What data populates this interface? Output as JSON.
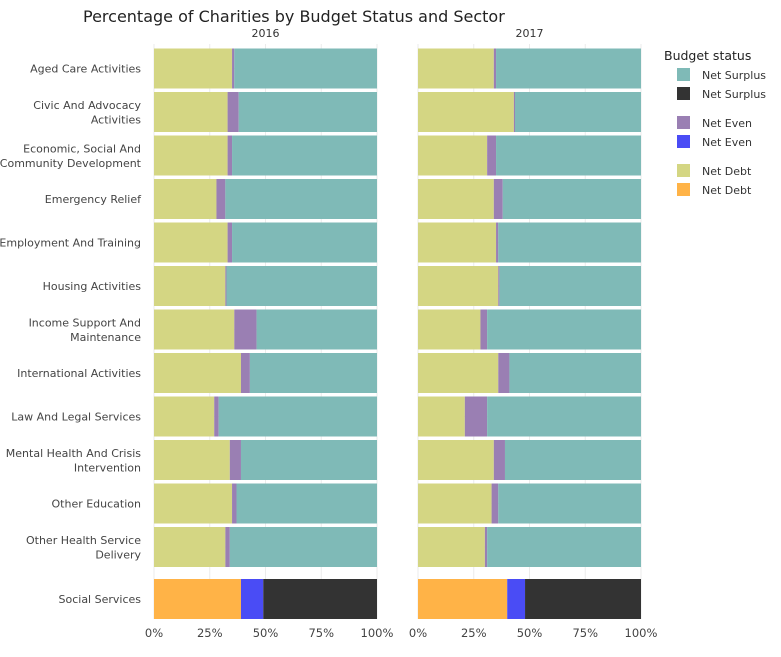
{
  "chart_data": {
    "type": "bar",
    "orientation": "horizontal",
    "stacked": "percent",
    "title": "Percentage of Charities by Budget Status and Sector",
    "facets": [
      "2016",
      "2017"
    ],
    "categories": [
      "Aged Care Activities",
      "Civic And Advocacy Activities",
      "Economic, Social And Community Development",
      "Emergency Relief",
      "Employment And Training",
      "Housing Activities",
      "Income Support And Maintenance",
      "International Activities",
      "Law And Legal Services",
      "Mental Health And Crisis Intervention",
      "Other Education",
      "Other Health Service Delivery",
      "Social Services"
    ],
    "category_lines": [
      [
        "Aged Care Activities"
      ],
      [
        "Civic And Advocacy",
        "Activities"
      ],
      [
        "Economic, Social And",
        "Community Development"
      ],
      [
        "Emergency Relief"
      ],
      [
        "Employment And Training"
      ],
      [
        "Housing Activities"
      ],
      [
        "Income Support And",
        "Maintenance"
      ],
      [
        "International Activities"
      ],
      [
        "Law And Legal Services"
      ],
      [
        "Mental Health And Crisis",
        "Intervention"
      ],
      [
        "Other Education"
      ],
      [
        "Other Health Service",
        "Delivery"
      ],
      [
        "Social Services"
      ]
    ],
    "highlight_category": "Social Services",
    "series": [
      {
        "name": "Net Debt",
        "color": "#d4d683",
        "highlight_color": "#ffb347",
        "values_2016": [
          35,
          33,
          33,
          28,
          33,
          32,
          36,
          39,
          27,
          34,
          35,
          32,
          39
        ],
        "values_2017": [
          34,
          43,
          31,
          34,
          35,
          36,
          28,
          36,
          21,
          34,
          33,
          30,
          40
        ]
      },
      {
        "name": "Net Even",
        "color": "#9a7fb3",
        "highlight_color": "#4a4cf5",
        "values_2016": [
          1,
          5,
          2,
          4,
          2,
          0.5,
          10,
          4,
          2,
          5,
          2,
          2,
          10
        ],
        "values_2017": [
          1,
          0.5,
          4,
          4,
          1,
          0.5,
          3,
          5,
          10,
          5,
          3,
          1,
          8
        ]
      },
      {
        "name": "Net Surplus",
        "color": "#7fbab7",
        "highlight_color": "#333333",
        "values_2016": [
          64,
          62,
          65,
          68,
          65,
          67.5,
          54,
          57,
          71,
          61,
          63,
          66,
          51
        ],
        "values_2017": [
          65,
          56.5,
          65,
          62,
          64,
          63.5,
          69,
          59,
          69,
          61,
          64,
          69,
          52
        ]
      }
    ],
    "xlim": [
      0,
      100
    ],
    "x_ticks": [
      "0%",
      "25%",
      "50%",
      "75%",
      "100%"
    ],
    "legend": {
      "title": "Budget status",
      "placement": "right",
      "entries": [
        {
          "label": "Net Surplus",
          "color": "#7fbab7"
        },
        {
          "label": "Net Surplus",
          "color": "#333333"
        },
        {
          "label": "Net Even",
          "color": "#9a7fb3"
        },
        {
          "label": "Net Even",
          "color": "#4a4cf5"
        },
        {
          "label": "Net Debt",
          "color": "#d4d683"
        },
        {
          "label": "Net Debt",
          "color": "#ffb347"
        }
      ]
    },
    "grid": true
  }
}
